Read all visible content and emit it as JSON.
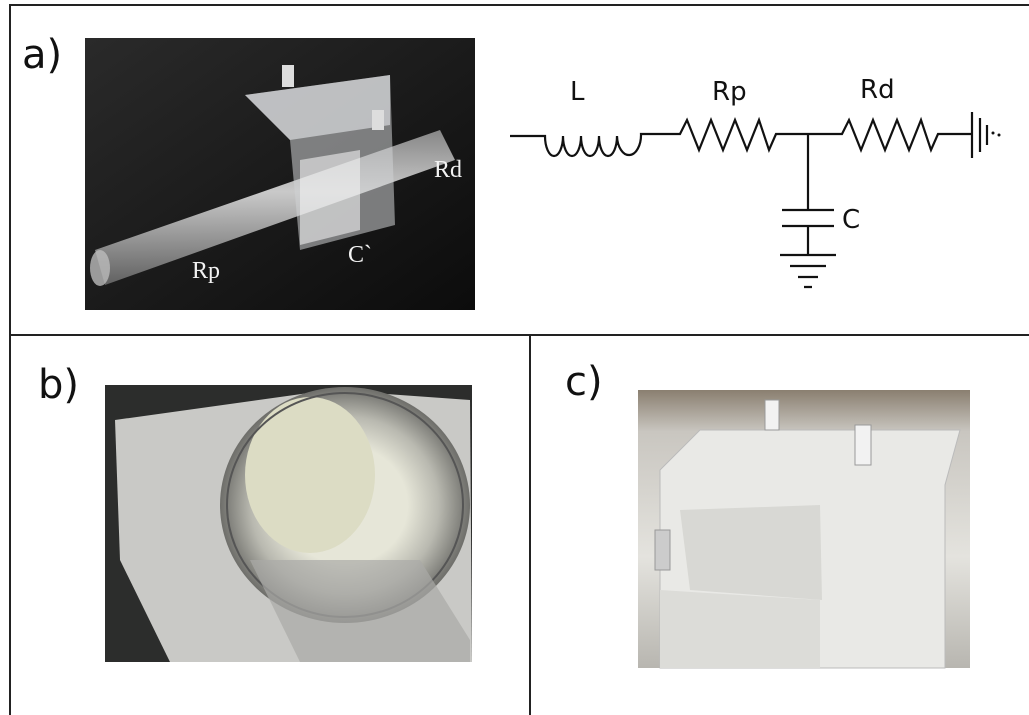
{
  "panel_a": {
    "label": "a)",
    "photo_labels": {
      "rp": "Rp",
      "c": "C`",
      "rd": "Rd"
    },
    "circuit": {
      "inductor": "L",
      "proximal_resistor": "Rp",
      "distal_resistor": "Rd",
      "capacitor": "C"
    }
  },
  "panel_b": {
    "label": "b)"
  },
  "panel_c": {
    "label": "c)"
  }
}
